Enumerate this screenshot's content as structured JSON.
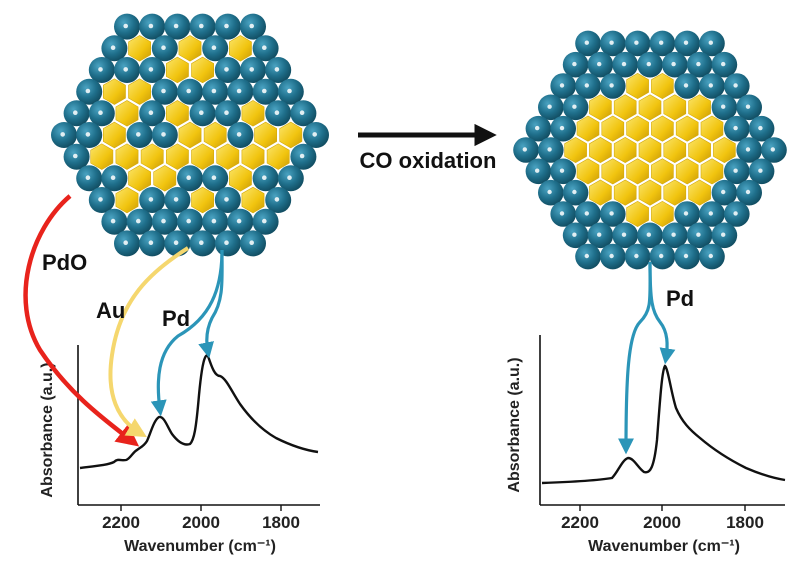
{
  "process_label": "CO oxidation",
  "arrow_labels": {
    "pdo": "PdO",
    "au": "Au",
    "pd_left": "Pd",
    "pd_right": "Pd"
  },
  "colors": {
    "pd_atom": "#1f6f8b",
    "au_atom": "#f1c40f",
    "pdo_arrow": "#e8231c",
    "au_arrow": "#f5d76e",
    "pd_arrow": "#2b95b8",
    "spectrum": "#111111"
  },
  "icons": {
    "before": "alloy-nanoparticle-mixed-surface-icon",
    "after": "core-shell-nanoparticle-pd-shell-icon",
    "process": "right-arrow-icon"
  },
  "charts": [
    {
      "id": "before",
      "x_axis_label": "Wavenumber (cm⁻¹)",
      "y_axis_label": "Absorbance (a.u.)",
      "x_ticks": [
        "2200",
        "2000",
        "1800"
      ],
      "xlim": [
        2300,
        1700
      ]
    },
    {
      "id": "after",
      "x_axis_label": "Wavenumber (cm⁻¹)",
      "y_axis_label": "Absorbance (a.u.)",
      "x_ticks": [
        "2200",
        "2000",
        "1800"
      ],
      "xlim": [
        2300,
        1700
      ]
    }
  ]
}
